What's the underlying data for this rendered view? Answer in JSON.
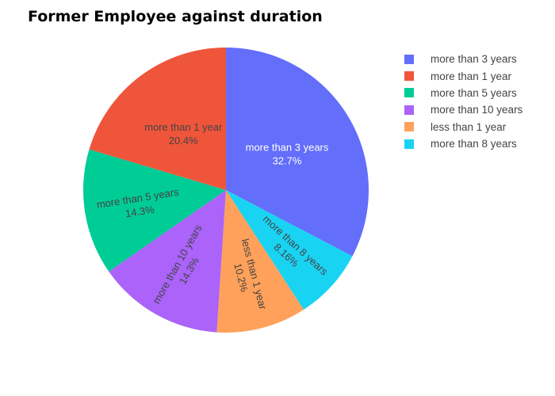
{
  "chart_data": {
    "type": "pie",
    "title": "Former Employee against duration",
    "slices": [
      {
        "label": "more than 3 years",
        "percent": 32.7,
        "percent_text": "32.7%",
        "color": "#636efa",
        "text_color": "#ffffff"
      },
      {
        "label": "more than 8 years",
        "percent": 8.16,
        "percent_text": "8.16%",
        "color": "#19d3f3",
        "text_color": "#444444"
      },
      {
        "label": "less than 1 year",
        "percent": 10.2,
        "percent_text": "10.2%",
        "color": "#ffa15a",
        "text_color": "#444444"
      },
      {
        "label": "more than 10 years",
        "percent": 14.3,
        "percent_text": "14.3%",
        "color": "#ab63fa",
        "text_color": "#444444"
      },
      {
        "label": "more than 5 years",
        "percent": 14.3,
        "percent_text": "14.3%",
        "color": "#00cc96",
        "text_color": "#444444"
      },
      {
        "label": "more than 1 year",
        "percent": 20.4,
        "percent_text": "20.4%",
        "color": "#ef553b",
        "text_color": "#444444"
      }
    ],
    "legend": [
      {
        "label": "more than 3 years",
        "color": "#636efa"
      },
      {
        "label": "more than 1 year",
        "color": "#ef553b"
      },
      {
        "label": "more than 5 years",
        "color": "#00cc96"
      },
      {
        "label": "more than 10 years",
        "color": "#ab63fa"
      },
      {
        "label": "less than 1 year",
        "color": "#ffa15a"
      },
      {
        "label": "more than 8 years",
        "color": "#19d3f3"
      }
    ],
    "legend_placement": "right"
  }
}
